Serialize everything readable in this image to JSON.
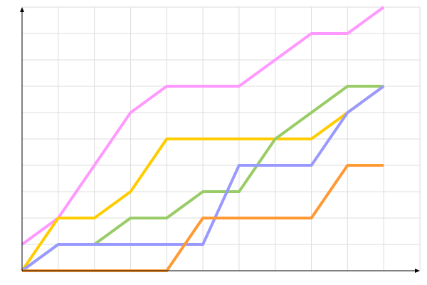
{
  "chart_data": {
    "type": "line",
    "title": "",
    "xlabel": "",
    "ylabel": "",
    "x": [
      0,
      1,
      2,
      3,
      4,
      5,
      6,
      7,
      8,
      9,
      10
    ],
    "xlim": [
      0,
      11
    ],
    "ylim": [
      0,
      10
    ],
    "grid": true,
    "legend": "none",
    "series": [
      {
        "color": "#ff99ff",
        "values": [
          1,
          2,
          4,
          6,
          7,
          7,
          7,
          8,
          9,
          9,
          10
        ]
      },
      {
        "color": "#ffcc00",
        "values": [
          0,
          2,
          2,
          3,
          5,
          5,
          5,
          5,
          5,
          6,
          7
        ]
      },
      {
        "color": "#99cc66",
        "values": [
          0,
          1,
          1,
          2,
          2,
          3,
          3,
          5,
          6,
          7,
          7
        ]
      },
      {
        "color": "#9999ff",
        "values": [
          0,
          1,
          1,
          1,
          1,
          1,
          4,
          4,
          4,
          6,
          7
        ]
      },
      {
        "color": "#ff9933",
        "values": [
          0,
          0,
          0,
          0,
          0,
          2,
          2,
          2,
          2,
          4,
          4
        ]
      }
    ]
  }
}
